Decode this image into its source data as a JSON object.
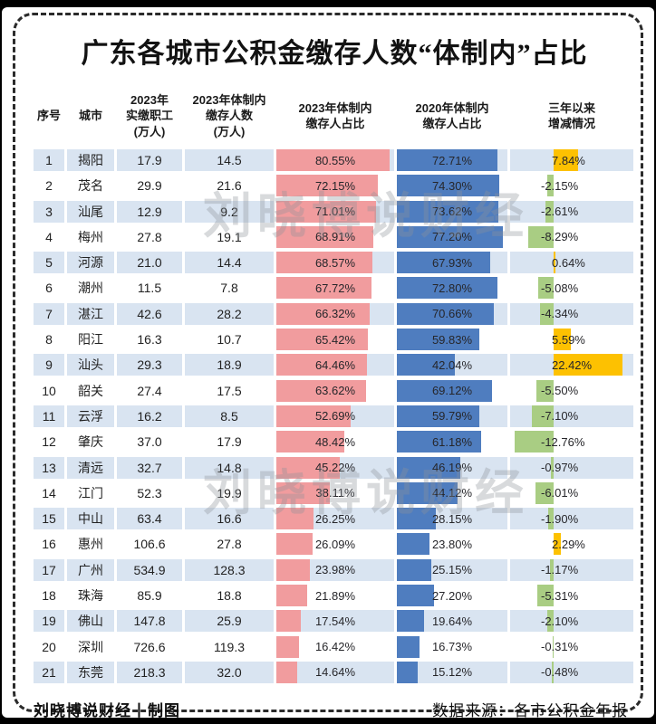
{
  "title": "广东各城市公积金缴存人数“体制内”占比",
  "watermark": "刘晓博说财经",
  "footer": {
    "left": "刘晓博说财经丨制图",
    "right": "数据来源：各市公积金年报"
  },
  "colors": {
    "bar_2023": "#f19c9e",
    "bar_2020": "#4f7dbf",
    "change_positive": "#fdc101",
    "change_negative": "#a9cd83",
    "row_stripe": "#d9e4f1",
    "title_text": "#121212"
  },
  "chart_data": {
    "type": "table",
    "columns": [
      "序号",
      "城市",
      "2023年\n实缴职工\n(万人)",
      "2023年体制内\n缴存人数\n(万人)",
      "2023年体制内\n缴存人占比",
      "2020年体制内\n缴存人占比",
      "三年以来\n增减情况"
    ],
    "rows": [
      {
        "no": "1",
        "city": "揭阳",
        "workers": "17.9",
        "members": "14.5",
        "pct2023": 80.55,
        "pct2020": 72.71,
        "change": 7.84
      },
      {
        "no": "2",
        "city": "茂名",
        "workers": "29.9",
        "members": "21.6",
        "pct2023": 72.15,
        "pct2020": 74.3,
        "change": -2.15
      },
      {
        "no": "3",
        "city": "汕尾",
        "workers": "12.9",
        "members": "9.2",
        "pct2023": 71.01,
        "pct2020": 73.62,
        "change": -2.61
      },
      {
        "no": "4",
        "city": "梅州",
        "workers": "27.8",
        "members": "19.1",
        "pct2023": 68.91,
        "pct2020": 77.2,
        "change": -8.29
      },
      {
        "no": "5",
        "city": "河源",
        "workers": "21.0",
        "members": "14.4",
        "pct2023": 68.57,
        "pct2020": 67.93,
        "change": 0.64
      },
      {
        "no": "6",
        "city": "潮州",
        "workers": "11.5",
        "members": "7.8",
        "pct2023": 67.72,
        "pct2020": 72.8,
        "change": -5.08
      },
      {
        "no": "7",
        "city": "湛江",
        "workers": "42.6",
        "members": "28.2",
        "pct2023": 66.32,
        "pct2020": 70.66,
        "change": -4.34
      },
      {
        "no": "8",
        "city": "阳江",
        "workers": "16.3",
        "members": "10.7",
        "pct2023": 65.42,
        "pct2020": 59.83,
        "change": 5.59
      },
      {
        "no": "9",
        "city": "汕头",
        "workers": "29.3",
        "members": "18.9",
        "pct2023": 64.46,
        "pct2020": 42.04,
        "change": 22.42
      },
      {
        "no": "10",
        "city": "韶关",
        "workers": "27.4",
        "members": "17.5",
        "pct2023": 63.62,
        "pct2020": 69.12,
        "change": -5.5
      },
      {
        "no": "11",
        "city": "云浮",
        "workers": "16.2",
        "members": "8.5",
        "pct2023": 52.69,
        "pct2020": 59.79,
        "change": -7.1
      },
      {
        "no": "12",
        "city": "肇庆",
        "workers": "37.0",
        "members": "17.9",
        "pct2023": 48.42,
        "pct2020": 61.18,
        "change": -12.76
      },
      {
        "no": "13",
        "city": "清远",
        "workers": "32.7",
        "members": "14.8",
        "pct2023": 45.22,
        "pct2020": 46.19,
        "change": -0.97
      },
      {
        "no": "14",
        "city": "江门",
        "workers": "52.3",
        "members": "19.9",
        "pct2023": 38.11,
        "pct2020": 44.12,
        "change": -6.01
      },
      {
        "no": "15",
        "city": "中山",
        "workers": "63.4",
        "members": "16.6",
        "pct2023": 26.25,
        "pct2020": 28.15,
        "change": -1.9
      },
      {
        "no": "16",
        "city": "惠州",
        "workers": "106.6",
        "members": "27.8",
        "pct2023": 26.09,
        "pct2020": 23.8,
        "change": 2.29
      },
      {
        "no": "17",
        "city": "广州",
        "workers": "534.9",
        "members": "128.3",
        "pct2023": 23.98,
        "pct2020": 25.15,
        "change": -1.17
      },
      {
        "no": "18",
        "city": "珠海",
        "workers": "85.9",
        "members": "18.8",
        "pct2023": 21.89,
        "pct2020": 27.2,
        "change": -5.31
      },
      {
        "no": "19",
        "city": "佛山",
        "workers": "147.8",
        "members": "25.9",
        "pct2023": 17.54,
        "pct2020": 19.64,
        "change": -2.1
      },
      {
        "no": "20",
        "city": "深圳",
        "workers": "726.6",
        "members": "119.3",
        "pct2023": 16.42,
        "pct2020": 16.73,
        "change": -0.31
      },
      {
        "no": "21",
        "city": "东莞",
        "workers": "218.3",
        "members": "32.0",
        "pct2023": 14.64,
        "pct2020": 15.12,
        "change": -0.48
      }
    ]
  }
}
